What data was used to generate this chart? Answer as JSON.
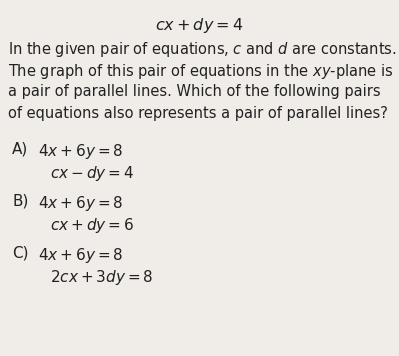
{
  "bg_color": "#f0ece8",
  "title_math": "$cx + dy = 4$",
  "body_line1": "In the given pair of equations, $c$ and $d$ are constants.",
  "body_line2": "The graph of this pair of equations in the $xy$-plane is",
  "body_line3": "a pair of parallel lines. Which of the following pairs",
  "body_line4": "of equations also represents a pair of parallel lines?",
  "option_A_label": "A)",
  "option_A_line1": "$4x + 6y = 8$",
  "option_A_line2": "$cx - dy = 4$",
  "option_B_label": "B)",
  "option_B_line1": "$4x + 6y = 8$",
  "option_B_line2": "$cx + dy = 6$",
  "option_C_label": "C)",
  "option_C_line1": "$4x + 6y = 8$",
  "option_C_line2": "$2cx + 3dy = 8$",
  "text_color": "#222222",
  "title_fontsize": 11.5,
  "body_fontsize": 10.5,
  "option_fontsize": 11
}
